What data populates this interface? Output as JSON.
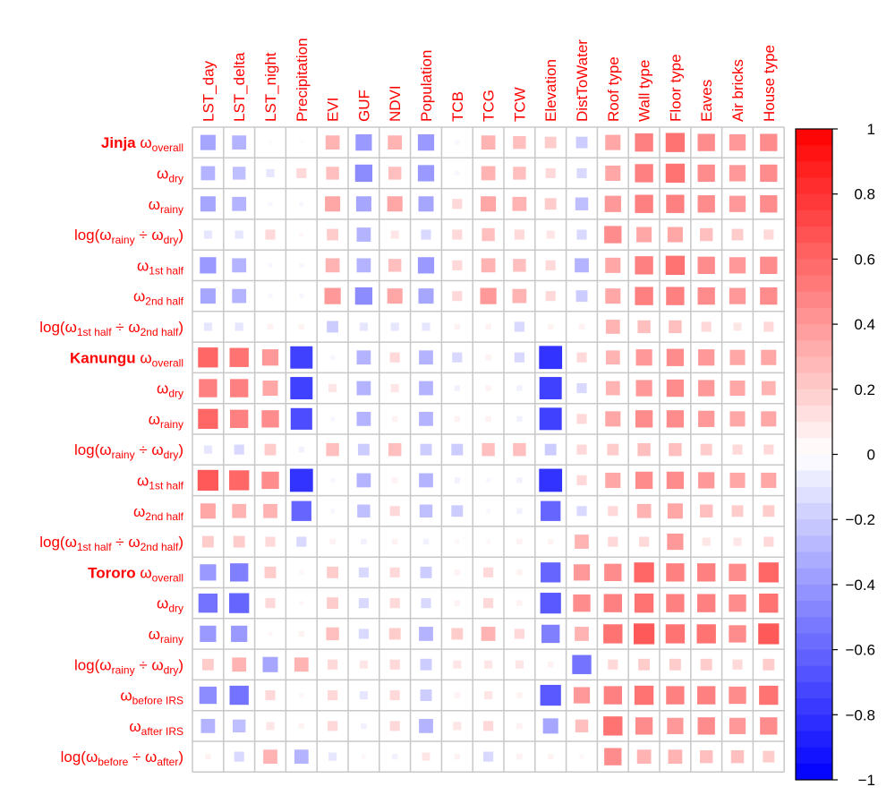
{
  "chart_data": {
    "type": "heatmap",
    "style": "correlation matrix with squares sized and colored by value",
    "color_scale": {
      "min": -1,
      "max": 1,
      "low_color": "#0000ff",
      "mid_color": "#ffffff",
      "high_color": "#ff0000",
      "ticks": [
        "1",
        "0.8",
        "0.6",
        "0.4",
        "0.2",
        "0",
        "−0.2",
        "−0.4",
        "−0.6",
        "−0.8",
        "−1"
      ],
      "tick_values": [
        1,
        0.8,
        0.6,
        0.4,
        0.2,
        0,
        -0.2,
        -0.4,
        -0.6,
        -0.8,
        -1
      ]
    },
    "columns": [
      "LST_day",
      "LST_delta",
      "LST_night",
      "Precipitation",
      "EVI",
      "GUF",
      "NDVI",
      "Population",
      "TCB",
      "TCG",
      "TCW",
      "Elevation",
      "DistToWater",
      "Roof type",
      "Wall type",
      "Floor type",
      "Eaves",
      "Air bricks",
      "House type"
    ],
    "rows": [
      {
        "group": "Jinja",
        "parts": [
          [
            "ω",
            "n"
          ],
          [
            "overall",
            "s"
          ]
        ]
      },
      {
        "group": "",
        "parts": [
          [
            "ω",
            "n"
          ],
          [
            "dry",
            "s"
          ]
        ]
      },
      {
        "group": "",
        "parts": [
          [
            "ω",
            "n"
          ],
          [
            "rainy",
            "s"
          ]
        ]
      },
      {
        "group": "",
        "parts": [
          [
            "log(ω",
            "n"
          ],
          [
            "rainy",
            "s"
          ],
          [
            " ÷ ω",
            "n"
          ],
          [
            "dry",
            "s"
          ],
          [
            ")",
            "n"
          ]
        ]
      },
      {
        "group": "",
        "parts": [
          [
            "ω",
            "n"
          ],
          [
            "1st half",
            "s"
          ]
        ]
      },
      {
        "group": "",
        "parts": [
          [
            "ω",
            "n"
          ],
          [
            "2nd half",
            "s"
          ]
        ]
      },
      {
        "group": "",
        "parts": [
          [
            "log(ω",
            "n"
          ],
          [
            "1st half",
            "s"
          ],
          [
            " ÷ ω",
            "n"
          ],
          [
            "2nd half",
            "s"
          ],
          [
            ")",
            "n"
          ]
        ]
      },
      {
        "group": "Kanungu",
        "parts": [
          [
            "ω",
            "n"
          ],
          [
            "overall",
            "s"
          ]
        ]
      },
      {
        "group": "",
        "parts": [
          [
            "ω",
            "n"
          ],
          [
            "dry",
            "s"
          ]
        ]
      },
      {
        "group": "",
        "parts": [
          [
            "ω",
            "n"
          ],
          [
            "rainy",
            "s"
          ]
        ]
      },
      {
        "group": "",
        "parts": [
          [
            "log(ω",
            "n"
          ],
          [
            "rainy",
            "s"
          ],
          [
            " ÷ ω",
            "n"
          ],
          [
            "dry",
            "s"
          ],
          [
            ")",
            "n"
          ]
        ]
      },
      {
        "group": "",
        "parts": [
          [
            "ω",
            "n"
          ],
          [
            "1st half",
            "s"
          ]
        ]
      },
      {
        "group": "",
        "parts": [
          [
            "ω",
            "n"
          ],
          [
            "2nd half",
            "s"
          ]
        ]
      },
      {
        "group": "",
        "parts": [
          [
            "log(ω",
            "n"
          ],
          [
            "1st half",
            "s"
          ],
          [
            " ÷ ω",
            "n"
          ],
          [
            "2nd half",
            "s"
          ],
          [
            ")",
            "n"
          ]
        ]
      },
      {
        "group": "Tororo",
        "parts": [
          [
            "ω",
            "n"
          ],
          [
            "overall",
            "s"
          ]
        ]
      },
      {
        "group": "",
        "parts": [
          [
            "ω",
            "n"
          ],
          [
            "dry",
            "s"
          ]
        ]
      },
      {
        "group": "",
        "parts": [
          [
            "ω",
            "n"
          ],
          [
            "rainy",
            "s"
          ]
        ]
      },
      {
        "group": "",
        "parts": [
          [
            "log(ω",
            "n"
          ],
          [
            "rainy",
            "s"
          ],
          [
            " ÷ ω",
            "n"
          ],
          [
            "dry",
            "s"
          ],
          [
            ")",
            "n"
          ]
        ]
      },
      {
        "group": "",
        "parts": [
          [
            "ω",
            "n"
          ],
          [
            "before IRS",
            "s"
          ]
        ]
      },
      {
        "group": "",
        "parts": [
          [
            "ω",
            "n"
          ],
          [
            "after IRS",
            "s"
          ]
        ]
      },
      {
        "group": "",
        "parts": [
          [
            "log(ω",
            "n"
          ],
          [
            "before",
            "s"
          ],
          [
            " ÷ ω",
            "n"
          ],
          [
            "after",
            "s"
          ],
          [
            ")",
            "n"
          ]
        ]
      }
    ],
    "values": [
      [
        -0.35,
        -0.3,
        -0.02,
        -0.02,
        0.3,
        -0.4,
        0.3,
        -0.4,
        -0.03,
        0.3,
        0.25,
        0.2,
        -0.2,
        0.35,
        0.5,
        0.55,
        0.45,
        0.4,
        0.45
      ],
      [
        -0.3,
        -0.25,
        -0.1,
        0.15,
        0.25,
        -0.45,
        0.25,
        -0.4,
        -0.03,
        0.3,
        0.25,
        0.15,
        -0.15,
        0.35,
        0.5,
        0.55,
        0.45,
        0.4,
        0.45
      ],
      [
        -0.35,
        -0.3,
        -0.03,
        -0.03,
        0.35,
        -0.35,
        0.35,
        -0.35,
        0.15,
        0.35,
        0.3,
        0.2,
        -0.25,
        0.4,
        0.5,
        0.5,
        0.45,
        0.4,
        0.45
      ],
      [
        -0.1,
        -0.1,
        0.15,
        0.03,
        0.2,
        -0.3,
        0.1,
        -0.15,
        0.15,
        0.25,
        0.15,
        0.1,
        -0.15,
        0.45,
        0.35,
        0.35,
        0.25,
        0.2,
        0.15
      ],
      [
        -0.4,
        -0.3,
        -0.03,
        -0.03,
        0.3,
        -0.3,
        0.25,
        -0.4,
        0.15,
        0.3,
        0.25,
        0.15,
        -0.3,
        0.35,
        0.5,
        0.55,
        0.45,
        0.4,
        0.45
      ],
      [
        -0.35,
        -0.3,
        -0.03,
        -0.03,
        0.4,
        -0.45,
        0.35,
        -0.35,
        0.15,
        0.4,
        0.3,
        0.15,
        -0.2,
        0.35,
        0.5,
        0.5,
        0.45,
        0.4,
        0.45
      ],
      [
        -0.1,
        -0.1,
        0.05,
        0.05,
        -0.2,
        -0.1,
        -0.1,
        -0.1,
        0.05,
        0.05,
        -0.15,
        0.05,
        0.05,
        0.3,
        0.25,
        0.25,
        0.15,
        0.1,
        0.15
      ],
      [
        0.6,
        0.55,
        0.4,
        -0.75,
        -0.03,
        -0.3,
        0.15,
        -0.3,
        -0.15,
        0.05,
        -0.15,
        -0.8,
        0.15,
        0.3,
        0.4,
        0.45,
        0.4,
        0.35,
        0.35
      ],
      [
        0.5,
        0.5,
        0.35,
        -0.75,
        0.1,
        -0.3,
        0.1,
        -0.3,
        -0.05,
        0.05,
        -0.05,
        -0.75,
        -0.15,
        0.3,
        0.4,
        0.45,
        0.4,
        0.35,
        0.3
      ],
      [
        0.6,
        0.5,
        0.45,
        -0.7,
        -0.03,
        -0.3,
        0.05,
        -0.3,
        0.05,
        0.05,
        -0.05,
        -0.75,
        0.15,
        0.35,
        0.45,
        0.45,
        0.4,
        0.35,
        0.35
      ],
      [
        -0.1,
        -0.15,
        0.2,
        -0.05,
        0.25,
        -0.2,
        0.25,
        -0.2,
        -0.2,
        0.25,
        0.25,
        -0.2,
        0.15,
        0.2,
        0.25,
        0.25,
        0.2,
        0.15,
        0.15
      ],
      [
        0.65,
        0.6,
        0.45,
        -0.8,
        -0.03,
        -0.3,
        0.05,
        -0.3,
        -0.05,
        -0.03,
        -0.05,
        -0.8,
        0.15,
        0.35,
        0.45,
        0.45,
        0.4,
        0.35,
        0.35
      ],
      [
        0.35,
        0.3,
        0.3,
        -0.6,
        -0.03,
        -0.25,
        0.15,
        -0.25,
        -0.2,
        -0.03,
        -0.05,
        -0.6,
        -0.15,
        0.15,
        0.3,
        0.35,
        0.25,
        0.2,
        0.2
      ],
      [
        0.2,
        0.2,
        0.15,
        -0.15,
        0.05,
        -0.05,
        0.05,
        -0.05,
        0.03,
        0.03,
        0.05,
        0.05,
        0.3,
        0.15,
        0.15,
        0.4,
        0.1,
        0.1,
        0.15
      ],
      [
        -0.4,
        -0.5,
        0.2,
        0.03,
        0.2,
        -0.15,
        0.15,
        -0.2,
        0.05,
        0.15,
        0.05,
        -0.6,
        0.4,
        0.45,
        0.6,
        0.5,
        0.5,
        0.45,
        0.6
      ],
      [
        -0.55,
        -0.6,
        0.15,
        0.03,
        0.2,
        -0.15,
        0.15,
        -0.15,
        0.05,
        0.15,
        0.05,
        -0.65,
        0.45,
        0.5,
        0.55,
        0.5,
        0.5,
        0.45,
        0.55
      ],
      [
        -0.4,
        -0.4,
        0.03,
        0.05,
        0.25,
        -0.15,
        0.2,
        -0.3,
        0.2,
        0.3,
        0.15,
        -0.5,
        0.3,
        0.55,
        0.65,
        0.55,
        0.55,
        0.45,
        0.65
      ],
      [
        0.2,
        0.3,
        -0.35,
        0.3,
        0.15,
        0.1,
        0.15,
        -0.2,
        0.1,
        0.1,
        0.1,
        0.05,
        -0.55,
        0.15,
        0.2,
        0.2,
        0.2,
        0.15,
        0.2
      ],
      [
        -0.45,
        -0.55,
        0.15,
        0.03,
        0.15,
        -0.1,
        0.15,
        -0.2,
        0.05,
        0.1,
        0.05,
        -0.65,
        0.4,
        0.5,
        0.55,
        0.5,
        0.5,
        0.45,
        0.55
      ],
      [
        -0.3,
        -0.25,
        0.1,
        0.05,
        0.15,
        -0.05,
        0.15,
        -0.3,
        0.1,
        0.15,
        0.05,
        -0.35,
        0.25,
        0.55,
        0.45,
        0.4,
        0.45,
        0.4,
        0.45
      ],
      [
        0.05,
        -0.15,
        0.3,
        -0.3,
        -0.1,
        0.03,
        -0.05,
        0.1,
        0.05,
        -0.15,
        0.05,
        0.05,
        0.03,
        0.45,
        0.3,
        0.3,
        0.25,
        0.25,
        0.2
      ]
    ]
  }
}
